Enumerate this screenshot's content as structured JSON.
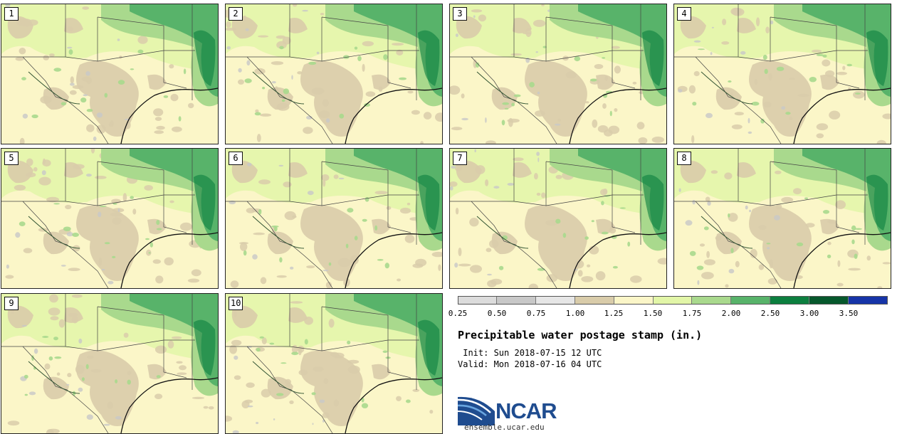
{
  "panels": [
    "1",
    "2",
    "3",
    "4",
    "5",
    "6",
    "7",
    "8",
    "9",
    "10"
  ],
  "colorbar": {
    "colors": [
      "#dcdcdc",
      "#c8c8c8",
      "#e6e6e6",
      "#d9ccaa",
      "#fbf6c8",
      "#e2f6a8",
      "#a9d98d",
      "#58b36a",
      "#0c7f3f",
      "#06582c",
      "#1634a8"
    ],
    "ticks": [
      "0.25",
      "0.50",
      "0.75",
      "1.00",
      "1.25",
      "1.50",
      "1.75",
      "2.00",
      "2.50",
      "3.00",
      "3.50"
    ]
  },
  "title": "Precipitable water postage stamp (in.)",
  "init": " Init: Sun 2018-07-15 12 UTC",
  "valid": "Valid: Mon 2018-07-16 04 UTC",
  "logo": {
    "name": "NCAR",
    "url": "ensemble.ucar.edu"
  }
}
